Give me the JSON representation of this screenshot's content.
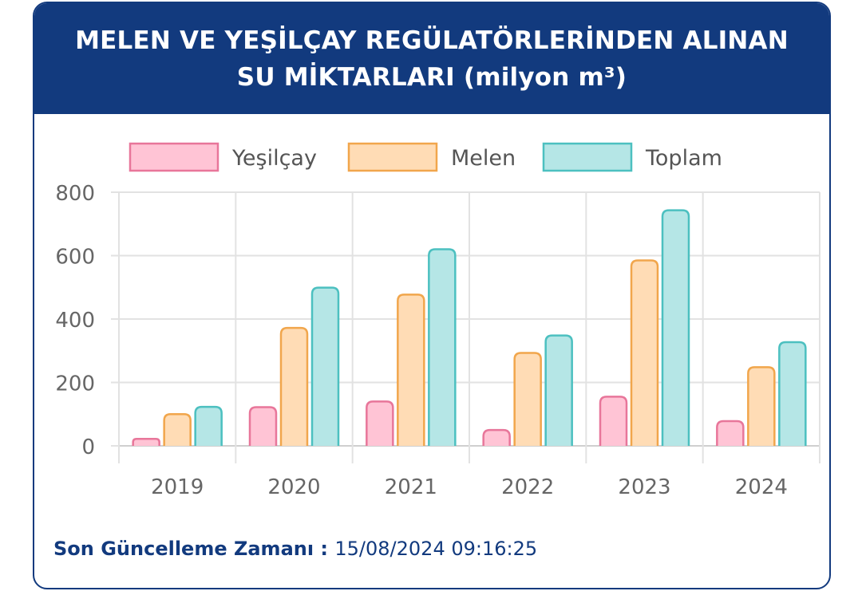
{
  "header": {
    "title_line1": "MELEN VE YEŞİLÇAY REGÜLATÖRLERİNDEN ALINAN",
    "title_line2": "SU MİKTARLARI (milyon m³)"
  },
  "chart_data": {
    "type": "bar",
    "categories": [
      "2019",
      "2020",
      "2021",
      "2022",
      "2023",
      "2024"
    ],
    "series": [
      {
        "name": "Yeşilçay",
        "values": [
          22,
          122,
          140,
          50,
          155,
          78
        ],
        "fill": "#ffc4d5",
        "stroke": "#e8769a"
      },
      {
        "name": "Melen",
        "values": [
          100,
          372,
          477,
          293,
          585,
          248
        ],
        "fill": "#ffdcb5",
        "stroke": "#f1a64c"
      },
      {
        "name": "Toplam",
        "values": [
          123,
          499,
          620,
          348,
          743,
          327
        ],
        "fill": "#b5e6e6",
        "stroke": "#4cc0c0"
      }
    ],
    "y_ticks": [
      "0",
      "200",
      "400",
      "600",
      "800"
    ],
    "ylim": [
      0,
      800
    ],
    "grid": true,
    "legend_position": "top-center"
  },
  "footer": {
    "label": "Son Güncelleme Zamanı",
    "separator": " : ",
    "value": "15/08/2024 09:16:25"
  }
}
